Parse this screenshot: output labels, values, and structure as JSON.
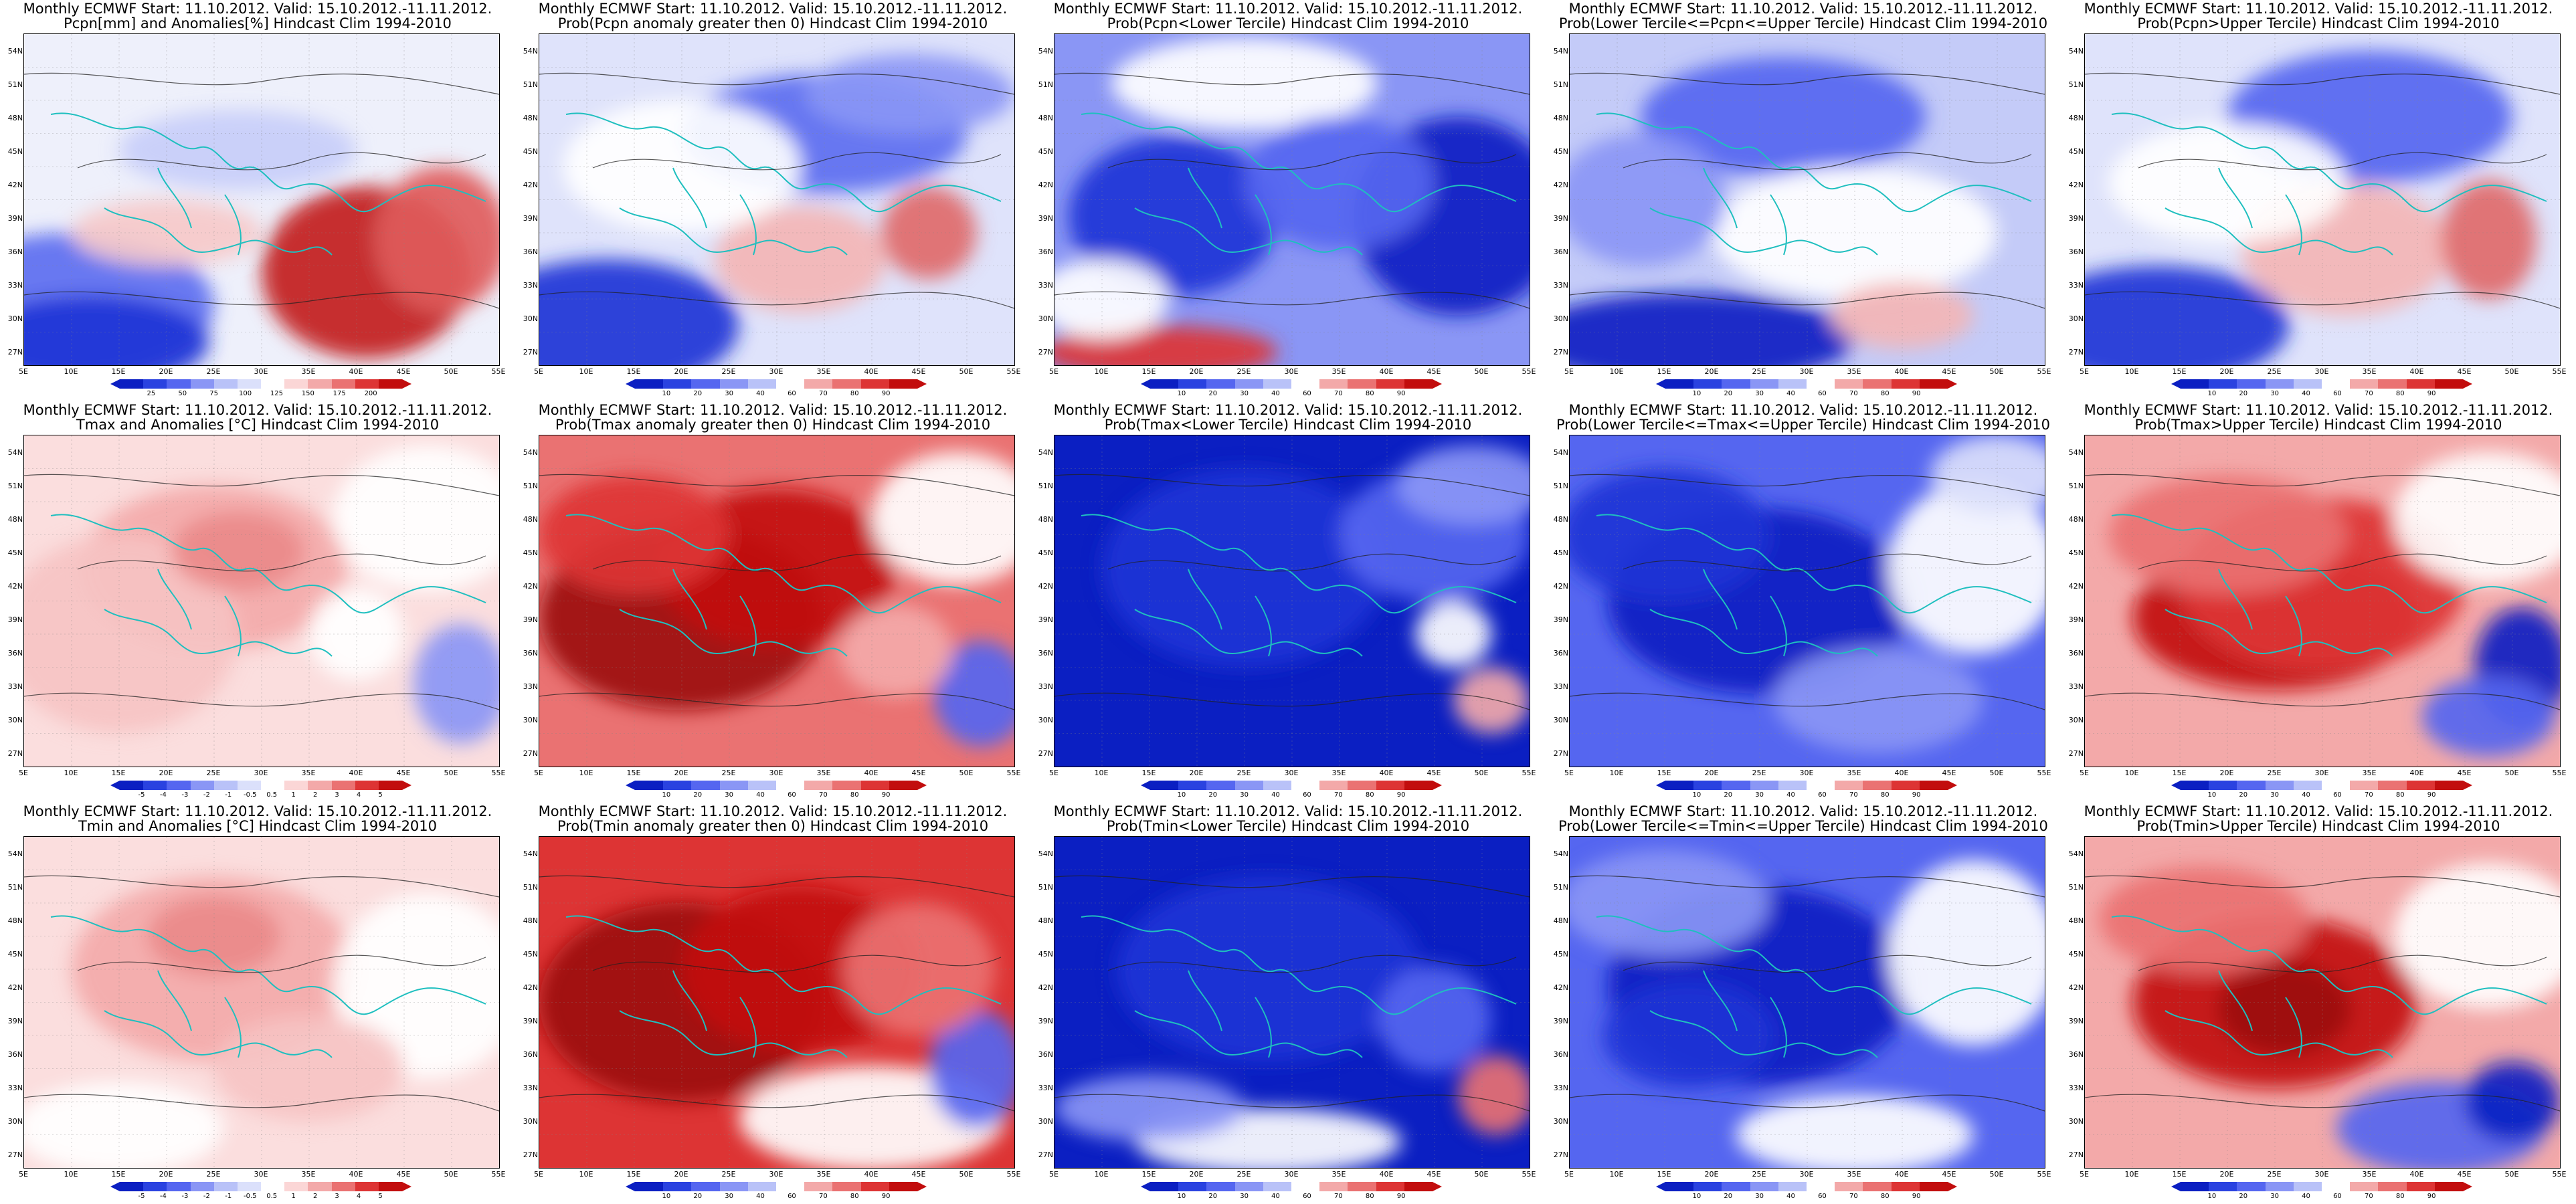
{
  "title_prefix": "Monthly ECMWF Start: 11.10.2012. Valid: 15.10.2012.-11.11.2012.",
  "lat_labels": [
    "54N",
    "51N",
    "48N",
    "45N",
    "42N",
    "39N",
    "36N",
    "33N",
    "30N",
    "27N"
  ],
  "lon_labels": [
    "5E",
    "10E",
    "15E",
    "20E",
    "25E",
    "30E",
    "35E",
    "40E",
    "45E",
    "50E",
    "55E"
  ],
  "colorbars": {
    "pcpn_anom": {
      "colors": [
        "#0b1fc2",
        "#2a42e0",
        "#5566f0",
        "#8a96f5",
        "#b9c2f8",
        "#dbe0fb",
        "#ffffff",
        "#fbd6d6",
        "#f3a9a9",
        "#ea7272",
        "#dd3434",
        "#c20d0d"
      ],
      "ticks": [
        "25",
        "50",
        "75",
        "100",
        "125",
        "150",
        "175",
        "200"
      ]
    },
    "temp_anom": {
      "colors": [
        "#0b1fc2",
        "#2a42e0",
        "#5566f0",
        "#8a96f5",
        "#b9c2f8",
        "#dbe0fb",
        "#ffffff",
        "#fbd6d6",
        "#f3a9a9",
        "#ea7272",
        "#dd3434",
        "#c20d0d"
      ],
      "ticks": [
        "-5",
        "-4",
        "-3",
        "-2",
        "-1",
        "-0.5",
        "0.5",
        "1",
        "2",
        "3",
        "4",
        "5"
      ]
    },
    "prob": {
      "colors": [
        "#0b1fc2",
        "#2a42e0",
        "#5566f0",
        "#8a96f5",
        "#b9c2f8",
        "#ffffff",
        "#f3a9a9",
        "#ea7272",
        "#dd3434",
        "#c20d0d"
      ],
      "ticks": [
        "10",
        "20",
        "30",
        "40",
        "60",
        "70",
        "80",
        "90"
      ]
    }
  },
  "panels": [
    {
      "title2": "Pcpn[mm] and Anomalies[%] Hindcast Clim 1994-2010",
      "bar": "pcpn_anom",
      "base": "#eef0fb",
      "blobs": [
        [
          "#5b6cf0",
          0.1,
          0.82,
          0.3,
          0.22
        ],
        [
          "#1c33d6",
          0.14,
          0.93,
          0.25,
          0.14
        ],
        [
          "#c22020",
          0.72,
          0.72,
          0.22,
          0.26
        ],
        [
          "#e05b5b",
          0.88,
          0.62,
          0.14,
          0.22
        ],
        [
          "#c7cdf8",
          0.45,
          0.35,
          0.25,
          0.12
        ],
        [
          "#f6c9c9",
          0.3,
          0.6,
          0.2,
          0.1
        ]
      ]
    },
    {
      "title2": "Prob(Pcpn anomaly greater then 0) Hindcast Clim 1994-2010",
      "bar": "prob",
      "base": "#dfe3fb",
      "blobs": [
        [
          "#1c33d6",
          0.14,
          0.88,
          0.28,
          0.2
        ],
        [
          "#5b6cf0",
          0.6,
          0.3,
          0.3,
          0.18
        ],
        [
          "#f3b5b5",
          0.55,
          0.68,
          0.18,
          0.16
        ],
        [
          "#e06a6a",
          0.82,
          0.6,
          0.1,
          0.14
        ],
        [
          "#ffffff",
          0.3,
          0.4,
          0.25,
          0.2
        ],
        [
          "#8a96f5",
          0.78,
          0.18,
          0.22,
          0.12
        ]
      ]
    },
    {
      "title2": "Prob(Pcpn<Lower Tercile) Hindcast Clim 1994-2010",
      "bar": "prob",
      "base": "#8a96f5",
      "blobs": [
        [
          "#0b1fc2",
          0.85,
          0.55,
          0.22,
          0.3
        ],
        [
          "#1c33d6",
          0.25,
          0.55,
          0.22,
          0.24
        ],
        [
          "#ffffff",
          0.4,
          0.15,
          0.28,
          0.14
        ],
        [
          "#dd3434",
          0.22,
          0.96,
          0.25,
          0.08
        ],
        [
          "#5566f0",
          0.6,
          0.45,
          0.2,
          0.2
        ],
        [
          "#ffffff",
          0.1,
          0.8,
          0.14,
          0.12
        ]
      ]
    },
    {
      "title2": "Prob(Lower Tercile<=Pcpn<=Upper Tercile) Hindcast Clim 1994-2010",
      "bar": "prob",
      "base": "#c4cbf8",
      "blobs": [
        [
          "#0b1fc2",
          0.25,
          0.92,
          0.35,
          0.14
        ],
        [
          "#5566f0",
          0.45,
          0.25,
          0.3,
          0.18
        ],
        [
          "#ffffff",
          0.6,
          0.6,
          0.3,
          0.2
        ],
        [
          "#8a96f5",
          0.15,
          0.5,
          0.18,
          0.2
        ],
        [
          "#f3b5b5",
          0.7,
          0.85,
          0.15,
          0.1
        ]
      ]
    },
    {
      "title2": "Prob(Pcpn>Upper Tercile) Hindcast Clim 1994-2010",
      "bar": "prob",
      "base": "#dfe3fb",
      "blobs": [
        [
          "#1c33d6",
          0.15,
          0.88,
          0.28,
          0.18
        ],
        [
          "#5566f0",
          0.6,
          0.25,
          0.3,
          0.2
        ],
        [
          "#f3b5b5",
          0.55,
          0.65,
          0.22,
          0.2
        ],
        [
          "#e06a6a",
          0.85,
          0.62,
          0.1,
          0.18
        ],
        [
          "#ffffff",
          0.3,
          0.45,
          0.25,
          0.18
        ]
      ]
    },
    {
      "title2": "Tmax and Anomalies [°C] Hindcast Clim 1994-2010",
      "bar": "temp_anom",
      "base": "#fbdede",
      "blobs": [
        [
          "#f3a9a9",
          0.4,
          0.4,
          0.28,
          0.25
        ],
        [
          "#f6c3c3",
          0.2,
          0.6,
          0.25,
          0.3
        ],
        [
          "#ffffff",
          0.85,
          0.25,
          0.2,
          0.22
        ],
        [
          "#8a96f5",
          0.92,
          0.75,
          0.1,
          0.18
        ],
        [
          "#ea8a8a",
          0.45,
          0.35,
          0.14,
          0.12
        ],
        [
          "#ffffff",
          0.7,
          0.6,
          0.1,
          0.14
        ]
      ]
    },
    {
      "title2": "Prob(Tmax anomaly greater then 0) Hindcast Clim 1994-2010",
      "bar": "prob",
      "base": "#ea7272",
      "blobs": [
        [
          "#9c0c0c",
          0.3,
          0.55,
          0.3,
          0.28
        ],
        [
          "#c20d0d",
          0.5,
          0.4,
          0.25,
          0.24
        ],
        [
          "#dd3434",
          0.2,
          0.3,
          0.2,
          0.18
        ],
        [
          "#ffffff",
          0.88,
          0.25,
          0.18,
          0.2
        ],
        [
          "#5566f0",
          0.93,
          0.78,
          0.1,
          0.16
        ],
        [
          "#f3a9a9",
          0.75,
          0.65,
          0.12,
          0.14
        ]
      ]
    },
    {
      "title2": "Prob(Tmax<Lower Tercile) Hindcast Clim 1994-2010",
      "bar": "prob",
      "base": "#0b1fc2",
      "blobs": [
        [
          "#1c33d6",
          0.4,
          0.4,
          0.3,
          0.3
        ],
        [
          "#5566f0",
          0.8,
          0.3,
          0.2,
          0.2
        ],
        [
          "#8a96f5",
          0.88,
          0.15,
          0.16,
          0.12
        ],
        [
          "#f3a9a9",
          0.92,
          0.8,
          0.08,
          0.1
        ],
        [
          "#ffffff",
          0.84,
          0.6,
          0.08,
          0.1
        ]
      ]
    },
    {
      "title2": "Prob(Lower Tercile<=Tmax<=Upper Tercile) Hindcast Clim 1994-2010",
      "bar": "prob",
      "base": "#5566f0",
      "blobs": [
        [
          "#0b1fc2",
          0.4,
          0.5,
          0.32,
          0.28
        ],
        [
          "#1c33d6",
          0.2,
          0.3,
          0.22,
          0.2
        ],
        [
          "#ffffff",
          0.85,
          0.4,
          0.18,
          0.26
        ],
        [
          "#8a96f5",
          0.65,
          0.8,
          0.22,
          0.16
        ],
        [
          "#dbe0fb",
          0.9,
          0.12,
          0.14,
          0.12
        ]
      ]
    },
    {
      "title2": "Prob(Tmax>Upper Tercile) Hindcast Clim 1994-2010",
      "bar": "prob",
      "base": "#f3a9a9",
      "blobs": [
        [
          "#c20d0d",
          0.4,
          0.55,
          0.3,
          0.22
        ],
        [
          "#dd3434",
          0.5,
          0.45,
          0.3,
          0.26
        ],
        [
          "#ea7272",
          0.3,
          0.3,
          0.25,
          0.18
        ],
        [
          "#ffffff",
          0.85,
          0.25,
          0.2,
          0.2
        ],
        [
          "#0b1fc2",
          0.92,
          0.7,
          0.1,
          0.18
        ],
        [
          "#5566f0",
          0.85,
          0.85,
          0.14,
          0.12
        ]
      ]
    },
    {
      "title2": "Tmin and Anomalies [°C] Hindcast Clim 1994-2010",
      "bar": "temp_anom",
      "base": "#fbdede",
      "blobs": [
        [
          "#f3a9a9",
          0.4,
          0.4,
          0.3,
          0.28
        ],
        [
          "#ea8a8a",
          0.4,
          0.3,
          0.14,
          0.12
        ],
        [
          "#ffffff",
          0.85,
          0.45,
          0.2,
          0.28
        ],
        [
          "#ffffff",
          0.2,
          0.88,
          0.22,
          0.14
        ],
        [
          "#f6c3c3",
          0.6,
          0.7,
          0.2,
          0.16
        ]
      ]
    },
    {
      "title2": "Prob(Tmin anomaly greater then 0) Hindcast Clim 1994-2010",
      "bar": "prob",
      "base": "#dd3434",
      "blobs": [
        [
          "#9c0c0c",
          0.3,
          0.5,
          0.3,
          0.3
        ],
        [
          "#c20d0d",
          0.55,
          0.4,
          0.25,
          0.25
        ],
        [
          "#ffffff",
          0.7,
          0.85,
          0.28,
          0.16
        ],
        [
          "#5566f0",
          0.92,
          0.7,
          0.1,
          0.18
        ],
        [
          "#ea7272",
          0.8,
          0.4,
          0.16,
          0.2
        ]
      ]
    },
    {
      "title2": "Prob(Tmin<Lower Tercile) Hindcast Clim 1994-2010",
      "bar": "prob",
      "base": "#0b1fc2",
      "blobs": [
        [
          "#1c33d6",
          0.45,
          0.4,
          0.32,
          0.28
        ],
        [
          "#ffffff",
          0.45,
          0.92,
          0.28,
          0.1
        ],
        [
          "#8a96f5",
          0.2,
          0.82,
          0.2,
          0.1
        ],
        [
          "#ea7272",
          0.93,
          0.78,
          0.08,
          0.12
        ],
        [
          "#5566f0",
          0.8,
          0.55,
          0.12,
          0.16
        ]
      ]
    },
    {
      "title2": "Prob(Lower Tercile<=Tmin<=Upper Tercile) Hindcast Clim 1994-2010",
      "bar": "prob",
      "base": "#5566f0",
      "blobs": [
        [
          "#0b1fc2",
          0.4,
          0.45,
          0.32,
          0.3
        ],
        [
          "#ffffff",
          0.85,
          0.35,
          0.18,
          0.28
        ],
        [
          "#ffffff",
          0.6,
          0.9,
          0.25,
          0.12
        ],
        [
          "#8a96f5",
          0.2,
          0.2,
          0.22,
          0.16
        ],
        [
          "#1c33d6",
          0.25,
          0.6,
          0.18,
          0.16
        ]
      ]
    },
    {
      "title2": "Prob(Tmin>Upper Tercile) Hindcast Clim 1994-2010",
      "bar": "prob",
      "base": "#f3a9a9",
      "blobs": [
        [
          "#c20d0d",
          0.4,
          0.5,
          0.3,
          0.26
        ],
        [
          "#9c0c0c",
          0.42,
          0.52,
          0.14,
          0.14
        ],
        [
          "#ffffff",
          0.85,
          0.3,
          0.2,
          0.22
        ],
        [
          "#5566f0",
          0.75,
          0.88,
          0.22,
          0.14
        ],
        [
          "#0b1fc2",
          0.9,
          0.8,
          0.1,
          0.12
        ],
        [
          "#ea7272",
          0.25,
          0.25,
          0.22,
          0.16
        ]
      ]
    }
  ]
}
